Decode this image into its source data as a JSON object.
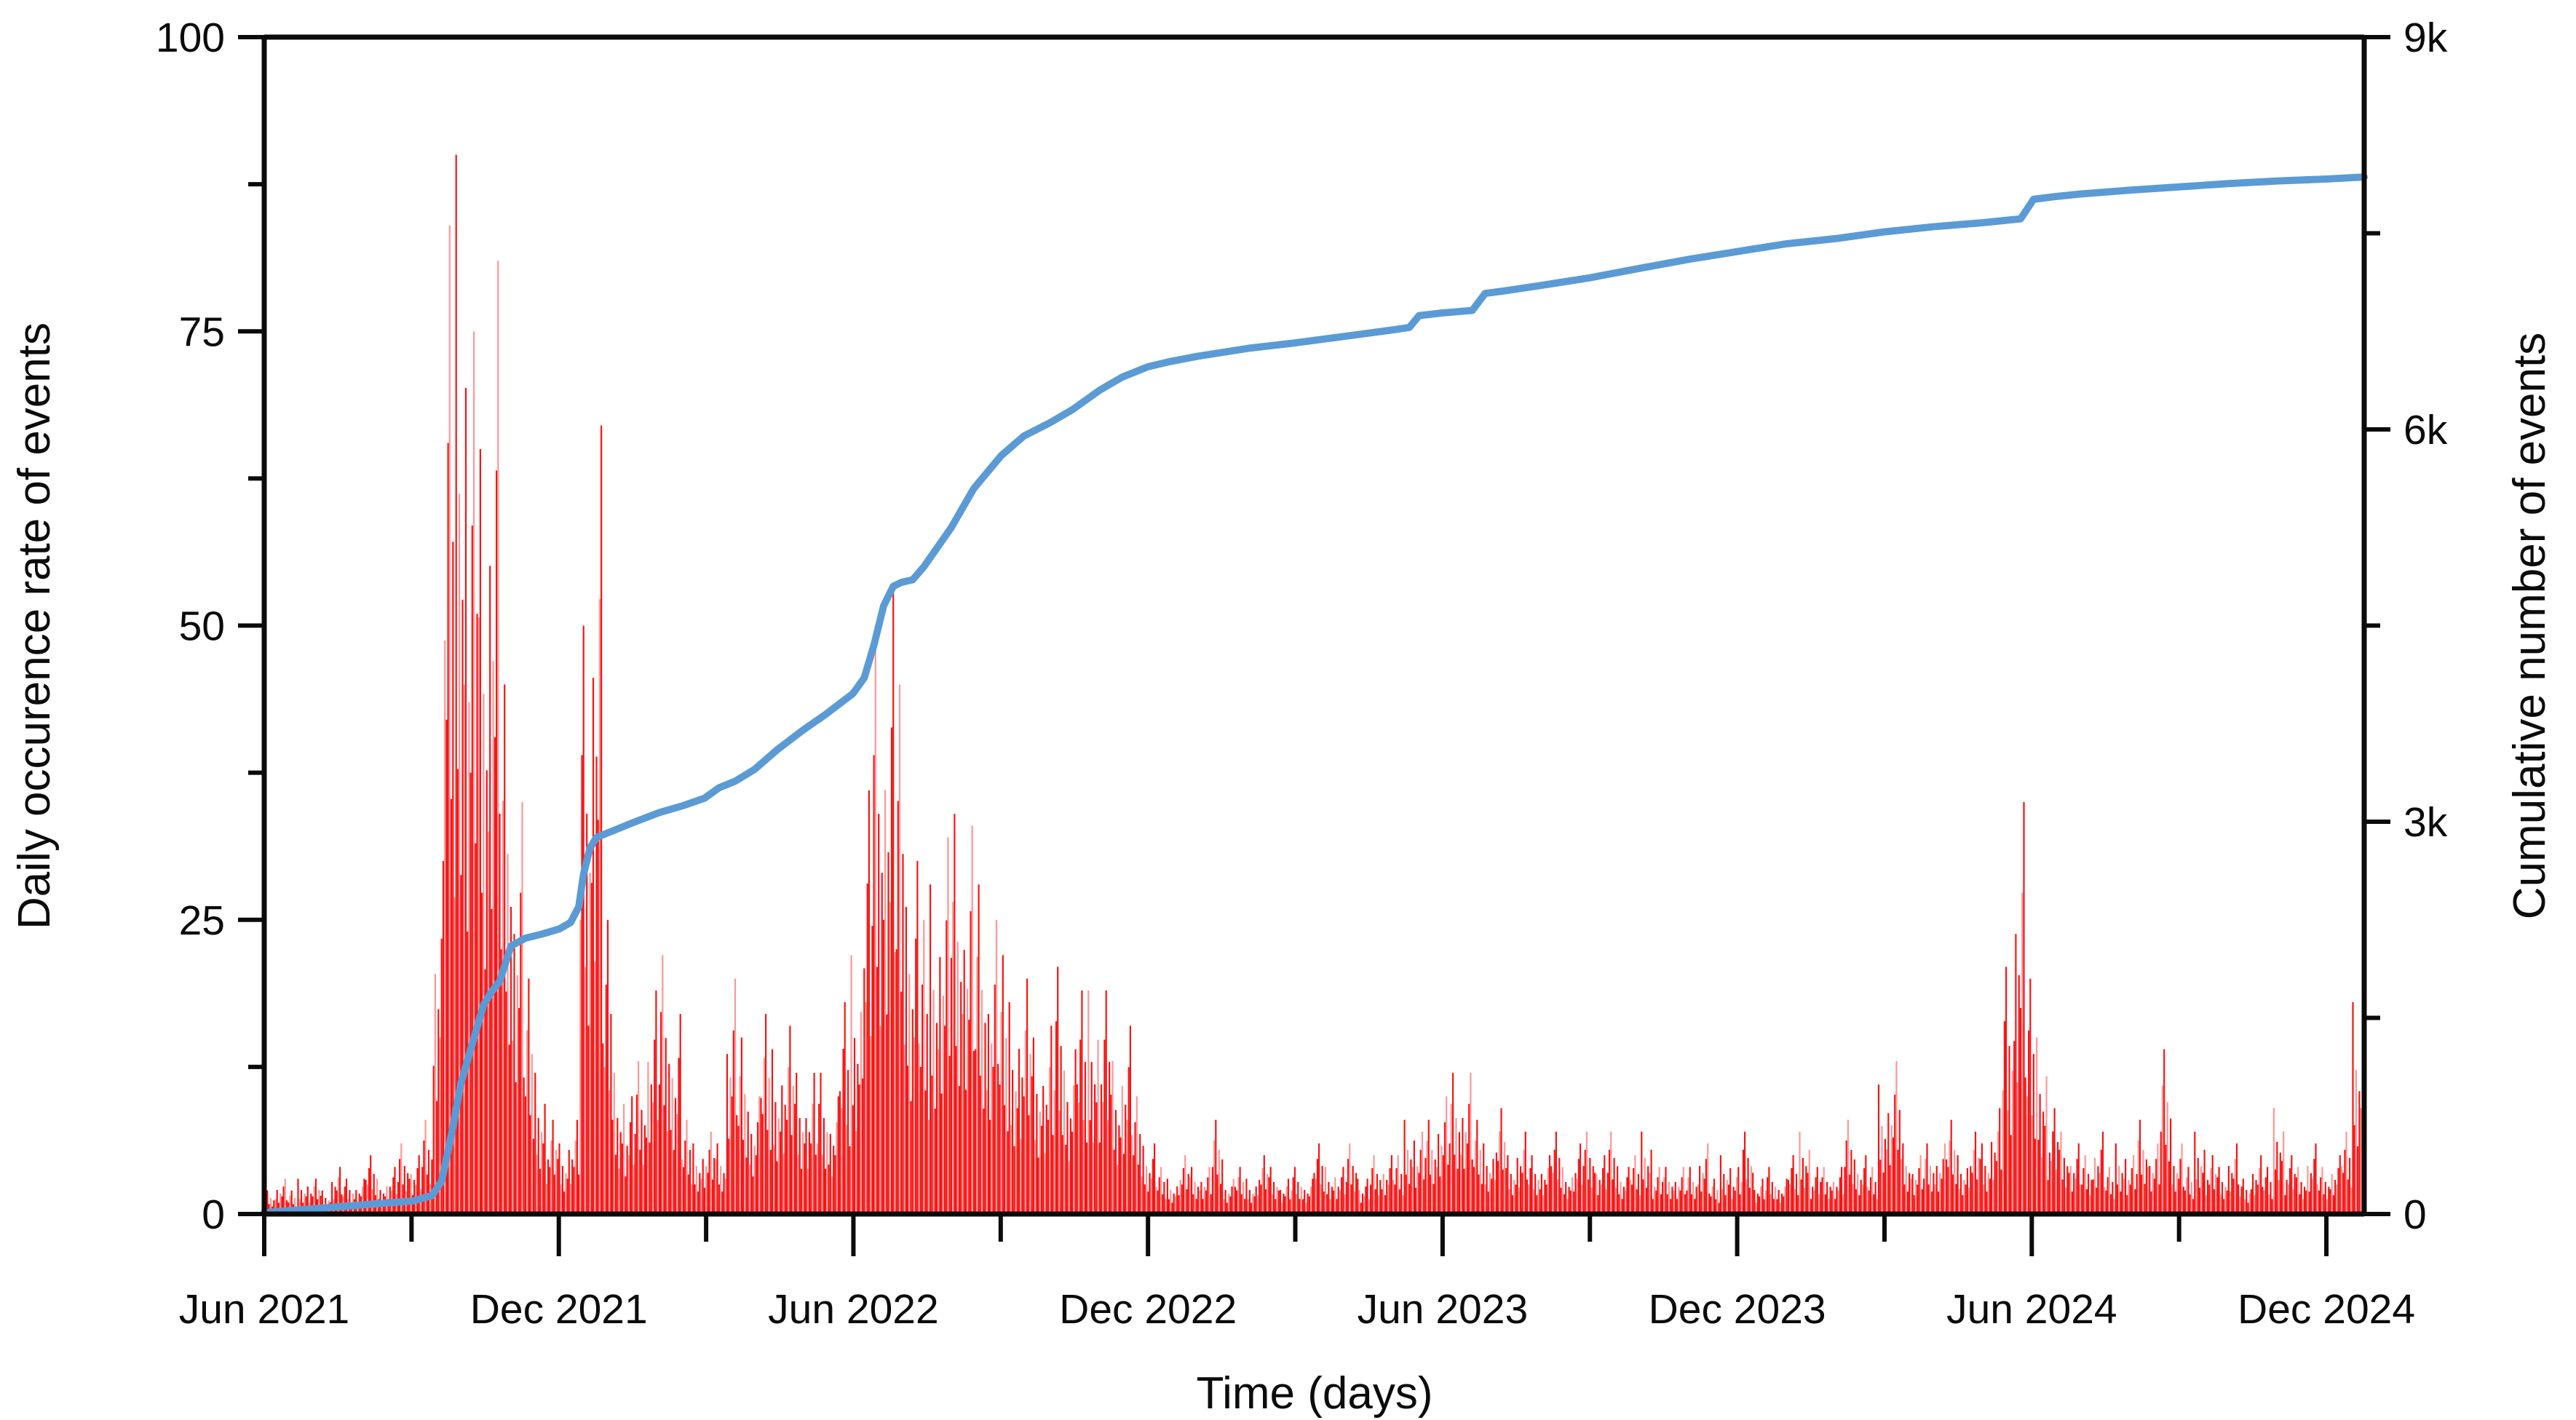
{
  "chart_data": {
    "type": "combo",
    "title": "",
    "x_axis": {
      "label": "Time (days)",
      "start_date": "2021-06-01",
      "end_date": "2024-12-25",
      "major_tick_labels": [
        "Jun 2021",
        "Dec 2021",
        "Jun 2022",
        "Dec 2022",
        "Jun 2023",
        "Dec 2023",
        "Jun 2024",
        "Dec 2024"
      ],
      "major_tick_months": [
        0,
        6,
        12,
        18,
        24,
        30,
        36,
        42
      ],
      "minor_tick_months": [
        3,
        9,
        15,
        21,
        27,
        33,
        39
      ]
    },
    "y_left": {
      "label": "Daily occurence rate of events",
      "min": 0,
      "max": 100,
      "tick_values": [
        0,
        25,
        50,
        75,
        100
      ],
      "tick_labels": [
        "0",
        "25",
        "50",
        "75",
        "100"
      ],
      "minor_tick_values": [
        12.5,
        37.5,
        62.5,
        87.5
      ]
    },
    "y_right": {
      "label": "Cumulative number of events",
      "min": 0,
      "max": 9000,
      "tick_values": [
        0,
        3000,
        6000,
        9000
      ],
      "tick_labels": [
        "0",
        "3k",
        "6k",
        "9k"
      ],
      "minor_tick_values": [
        1500,
        4500,
        7500
      ]
    },
    "series": [
      {
        "name": "Daily occurrence rate of events",
        "type": "bar",
        "axis": "left",
        "color": "#f81414",
        "color_light": "#ff9697",
        "sampling": "weekly peak daily rate, weeks starting 2021-06-01",
        "week_interval_days": 7,
        "weekly_peak_values": [
          2,
          3,
          2,
          3,
          3,
          2,
          4,
          3,
          3,
          5,
          3,
          4,
          6,
          5,
          8,
          30,
          84,
          90,
          75,
          65,
          81,
          45,
          35,
          20,
          12,
          8,
          6,
          8,
          50,
          67,
          25,
          12,
          10,
          13,
          19,
          22,
          17,
          8,
          6,
          7,
          6,
          20,
          15,
          10,
          17,
          14,
          16,
          12,
          12,
          12,
          10,
          18,
          22,
          36,
          50,
          53,
          45,
          30,
          25,
          28,
          32,
          34,
          33,
          28,
          25,
          22,
          18,
          20,
          15,
          16,
          21,
          14,
          19,
          19,
          19,
          13,
          16,
          10,
          6,
          4,
          3,
          5,
          4,
          4,
          8,
          3,
          4,
          3,
          5,
          4,
          3,
          4,
          3,
          6,
          4,
          4,
          6,
          3,
          5,
          5,
          5,
          8,
          7,
          8,
          10,
          12,
          12,
          8,
          6,
          9,
          5,
          7,
          5,
          5,
          7,
          4,
          6,
          7,
          5,
          7,
          4,
          5,
          7,
          4,
          4,
          4,
          4,
          6,
          3,
          5,
          4,
          7,
          3,
          4,
          3,
          5,
          7,
          4,
          4,
          4,
          8,
          5,
          4,
          11,
          13,
          6,
          5,
          6,
          6,
          8,
          5,
          7,
          6,
          9,
          21,
          35,
          20,
          15,
          9,
          7,
          6,
          5,
          7,
          4,
          6,
          5,
          8,
          6,
          14,
          6,
          4,
          7,
          5,
          4,
          6,
          3,
          5,
          4,
          9,
          5,
          4,
          6,
          4,
          5,
          7,
          18
        ]
      },
      {
        "name": "Cumulative number of events",
        "type": "line",
        "axis": "right",
        "color": "#5b9bd5",
        "points_format": "[days since 2021-06-01, cumulative events]",
        "points": [
          [
            0,
            10
          ],
          [
            30,
            40
          ],
          [
            61,
            70
          ],
          [
            92,
            100
          ],
          [
            104,
            140
          ],
          [
            110,
            250
          ],
          [
            116,
            600
          ],
          [
            122,
            1000
          ],
          [
            129,
            1300
          ],
          [
            136,
            1600
          ],
          [
            141,
            1700
          ],
          [
            146,
            1780
          ],
          [
            153,
            2050
          ],
          [
            162,
            2110
          ],
          [
            172,
            2140
          ],
          [
            183,
            2180
          ],
          [
            190,
            2230
          ],
          [
            195,
            2350
          ],
          [
            198,
            2600
          ],
          [
            202,
            2800
          ],
          [
            206,
            2880
          ],
          [
            214,
            2920
          ],
          [
            228,
            2990
          ],
          [
            245,
            3070
          ],
          [
            259,
            3120
          ],
          [
            273,
            3180
          ],
          [
            282,
            3260
          ],
          [
            292,
            3310
          ],
          [
            304,
            3400
          ],
          [
            318,
            3550
          ],
          [
            334,
            3700
          ],
          [
            348,
            3820
          ],
          [
            365,
            3980
          ],
          [
            372,
            4100
          ],
          [
            378,
            4350
          ],
          [
            384,
            4650
          ],
          [
            390,
            4800
          ],
          [
            395,
            4830
          ],
          [
            402,
            4850
          ],
          [
            409,
            4950
          ],
          [
            426,
            5250
          ],
          [
            440,
            5550
          ],
          [
            457,
            5800
          ],
          [
            471,
            5950
          ],
          [
            487,
            6050
          ],
          [
            501,
            6150
          ],
          [
            518,
            6300
          ],
          [
            532,
            6400
          ],
          [
            548,
            6480
          ],
          [
            562,
            6520
          ],
          [
            579,
            6560
          ],
          [
            610,
            6620
          ],
          [
            638,
            6660
          ],
          [
            669,
            6710
          ],
          [
            699,
            6760
          ],
          [
            710,
            6780
          ],
          [
            716,
            6870
          ],
          [
            730,
            6890
          ],
          [
            749,
            6910
          ],
          [
            757,
            7040
          ],
          [
            769,
            7060
          ],
          [
            791,
            7100
          ],
          [
            822,
            7160
          ],
          [
            852,
            7230
          ],
          [
            883,
            7300
          ],
          [
            913,
            7360
          ],
          [
            944,
            7420
          ],
          [
            975,
            7460
          ],
          [
            1004,
            7510
          ],
          [
            1035,
            7550
          ],
          [
            1065,
            7580
          ],
          [
            1089,
            7610
          ],
          [
            1097,
            7760
          ],
          [
            1110,
            7780
          ],
          [
            1126,
            7800
          ],
          [
            1157,
            7830
          ],
          [
            1188,
            7855
          ],
          [
            1218,
            7880
          ],
          [
            1249,
            7900
          ],
          [
            1279,
            7915
          ],
          [
            1302,
            7930
          ]
        ]
      }
    ],
    "legend": "none",
    "grid": "off",
    "axis_color": "#0b0b0b"
  }
}
